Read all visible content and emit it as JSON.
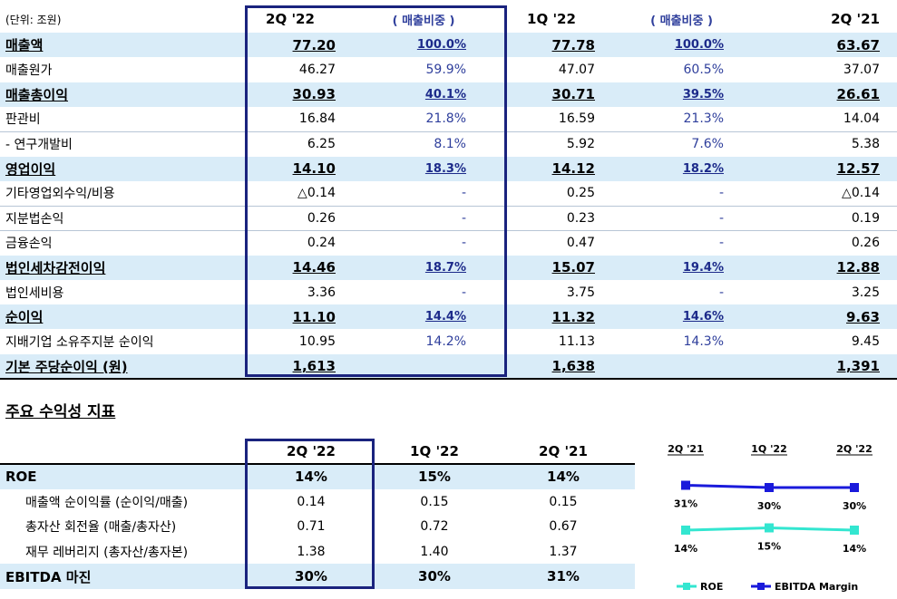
{
  "main_table": {
    "unit": "(단위: 조원)",
    "columns": [
      "2Q '22",
      "( 매출비중 )",
      "1Q '22",
      "( 매출비중 )",
      "2Q '21"
    ],
    "rows": [
      {
        "label": "매출액",
        "v": [
          "77.20",
          "100.0%",
          "77.78",
          "100.0%",
          "63.67"
        ]
      },
      {
        "label": "매출원가",
        "v": [
          "46.27",
          "59.9%",
          "47.07",
          "60.5%",
          "37.07"
        ]
      },
      {
        "label": "매출총이익",
        "v": [
          "30.93",
          "40.1%",
          "30.71",
          "39.5%",
          "26.61"
        ]
      },
      {
        "label": "판관비",
        "v": [
          "16.84",
          "21.8%",
          "16.59",
          "21.3%",
          "14.04"
        ]
      },
      {
        "label": " - 연구개발비",
        "v": [
          "6.25",
          "8.1%",
          "5.92",
          "7.6%",
          "5.38"
        ]
      },
      {
        "label": "영업이익",
        "v": [
          "14.10",
          "18.3%",
          "14.12",
          "18.2%",
          "12.57"
        ]
      },
      {
        "label": "기타영업외수익/비용",
        "v": [
          "△0.14",
          "-",
          "0.25",
          "-",
          "△0.14"
        ]
      },
      {
        "label": "지분법손익",
        "v": [
          "0.26",
          "-",
          "0.23",
          "-",
          "0.19"
        ]
      },
      {
        "label": "금융손익",
        "v": [
          "0.24",
          "-",
          "0.47",
          "-",
          "0.26"
        ]
      },
      {
        "label": "법인세차감전이익",
        "v": [
          "14.46",
          "18.7%",
          "15.07",
          "19.4%",
          "12.88"
        ]
      },
      {
        "label": "법인세비용",
        "v": [
          "3.36",
          "-",
          "3.75",
          "-",
          "3.25"
        ]
      },
      {
        "label": "순이익",
        "v": [
          "11.10",
          "14.4%",
          "11.32",
          "14.6%",
          "9.63"
        ]
      },
      {
        "label": "지배기업 소유주지분 순이익",
        "v": [
          "10.95",
          "14.2%",
          "11.13",
          "14.3%",
          "9.45"
        ]
      },
      {
        "label": "기본 주당순이익 (원)",
        "v": [
          "1,613",
          "",
          "1,638",
          "",
          "1,391"
        ]
      }
    ]
  },
  "section_title": "주요 수익성 지표",
  "ratio_table": {
    "columns": [
      "2Q '22",
      "1Q '22",
      "2Q '21"
    ],
    "rows": [
      {
        "label": "ROE",
        "v": [
          "14%",
          "15%",
          "14%"
        ]
      },
      {
        "label": "매출액 순이익률 (순이익/매출)",
        "v": [
          "0.14",
          "0.15",
          "0.15"
        ]
      },
      {
        "label": "총자산 회전율 (매출/총자산)",
        "v": [
          "0.71",
          "0.72",
          "0.67"
        ]
      },
      {
        "label": "재무 레버리지 (총자산/총자본)",
        "v": [
          "1.38",
          "1.40",
          "1.37"
        ]
      },
      {
        "label": "EBITDA 마진",
        "v": [
          "30%",
          "30%",
          "31%"
        ]
      }
    ]
  },
  "chart_data": {
    "type": "line",
    "categories": [
      "2Q '21",
      "1Q '22",
      "2Q '22"
    ],
    "series": [
      {
        "name": "ROE",
        "values": [
          14,
          15,
          14
        ],
        "labels": [
          "14%",
          "15%",
          "14%"
        ],
        "color": "#33e6d0"
      },
      {
        "name": "EBITDA Margin",
        "values": [
          31,
          30,
          30
        ],
        "labels": [
          "31%",
          "30%",
          "30%"
        ],
        "color": "#1a1adb"
      }
    ],
    "legend": "bottom"
  }
}
